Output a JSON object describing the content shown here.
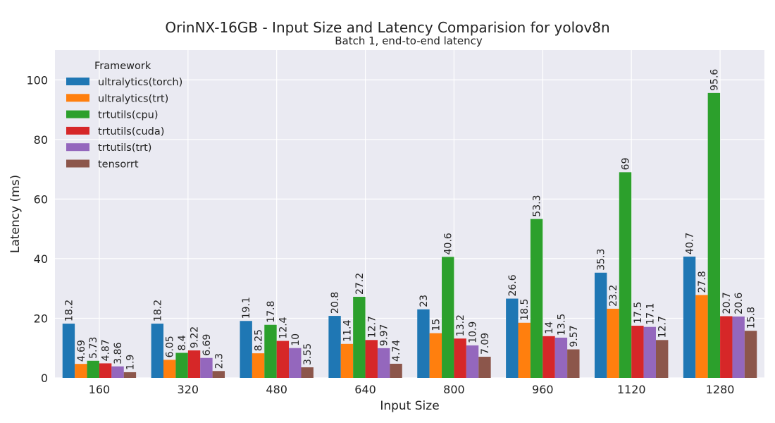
{
  "chart_data": {
    "type": "bar",
    "title": "OrinNX-16GB - Input Size and Latency Comparision for yolov8n",
    "subtitle": "Batch 1, end-to-end latency",
    "xlabel": "Input Size",
    "ylabel": "Latency (ms)",
    "ylim": [
      0,
      110
    ],
    "yticks": [
      0,
      20,
      40,
      60,
      80,
      100
    ],
    "grid": true,
    "legend_title": "Framework",
    "legend_position": "upper-left",
    "categories": [
      "160",
      "320",
      "480",
      "640",
      "800",
      "960",
      "1120",
      "1280"
    ],
    "series": [
      {
        "name": "ultralytics(torch)",
        "color": "#1f77b4",
        "values": [
          18.2,
          18.2,
          19.1,
          20.8,
          23,
          26.6,
          35.3,
          40.7
        ],
        "labels": [
          "18.2",
          "18.2",
          "19.1",
          "20.8",
          "23",
          "26.6",
          "35.3",
          "40.7"
        ]
      },
      {
        "name": "ultralytics(trt)",
        "color": "#ff7f0e",
        "values": [
          4.69,
          6.05,
          8.25,
          11.4,
          15,
          18.5,
          23.2,
          27.8
        ],
        "labels": [
          "4.69",
          "6.05",
          "8.25",
          "11.4",
          "15",
          "18.5",
          "23.2",
          "27.8"
        ]
      },
      {
        "name": "trtutils(cpu)",
        "color": "#2ca02c",
        "values": [
          5.73,
          8.4,
          17.8,
          27.2,
          40.6,
          53.3,
          69,
          95.6
        ],
        "labels": [
          "5.73",
          "8.4",
          "17.8",
          "27.2",
          "40.6",
          "53.3",
          "69",
          "95.6"
        ]
      },
      {
        "name": "trtutils(cuda)",
        "color": "#d62728",
        "values": [
          4.87,
          9.22,
          12.4,
          12.7,
          13.2,
          14,
          17.5,
          20.7
        ],
        "labels": [
          "4.87",
          "9.22",
          "12.4",
          "12.7",
          "13.2",
          "14",
          "17.5",
          "20.7"
        ]
      },
      {
        "name": "trtutils(trt)",
        "color": "#9467bd",
        "values": [
          3.86,
          6.69,
          10,
          9.97,
          10.9,
          13.5,
          17.1,
          20.6
        ],
        "labels": [
          "3.86",
          "6.69",
          "10",
          "9.97",
          "10.9",
          "13.5",
          "17.1",
          "20.6"
        ]
      },
      {
        "name": "tensorrt",
        "color": "#8c564b",
        "values": [
          1.9,
          2.3,
          3.55,
          4.74,
          7.09,
          9.57,
          12.7,
          15.8
        ],
        "labels": [
          "1.9",
          "2.3",
          "3.55",
          "4.74",
          "7.09",
          "9.57",
          "12.7",
          "15.8"
        ]
      }
    ]
  },
  "colors": {
    "plot_background": "#eaeaf2",
    "grid": "#ffffff",
    "legend_background": "#eaeaf2"
  }
}
